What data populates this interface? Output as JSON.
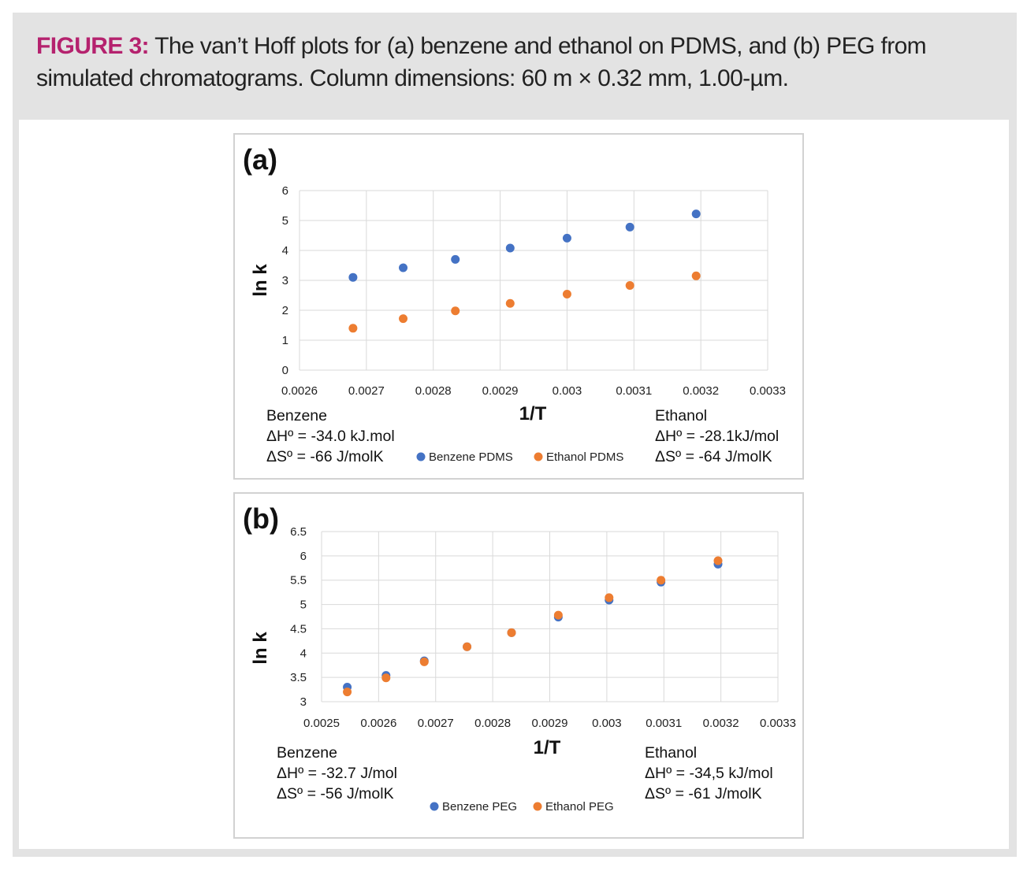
{
  "caption": {
    "label": "FIGURE 3:",
    "text": " The van’t Hoff plots for (a) benzene and ethanol on PDMS, and (b) PEG from simulated chromatograms. Column dimensions: 60 m × 0.32 mm, 1.00-µm."
  },
  "colors": {
    "benzene": "#4472c4",
    "ethanol": "#ed7d31",
    "highlight": "#b5226e"
  },
  "chart_data": [
    {
      "type": "scatter",
      "panel_label": "(a)",
      "xlabel": "1/T",
      "ylabel": "ln k",
      "xlim": [
        0.0026,
        0.0033
      ],
      "ylim": [
        0,
        6
      ],
      "x_ticks": [
        0.0026,
        0.0027,
        0.0028,
        0.0029,
        0.003,
        0.0031,
        0.0032,
        0.0033
      ],
      "x_tick_labels": [
        "0.0026",
        "0.0027",
        "0.0028",
        "0.0029",
        "0.003",
        "0.0031",
        "0.0032",
        "0.0033"
      ],
      "y_ticks": [
        0,
        1,
        2,
        3,
        4,
        5,
        6
      ],
      "y_tick_labels": [
        "0",
        "1",
        "2",
        "3",
        "4",
        "5",
        "6"
      ],
      "grid": true,
      "legend_position": "bottom-center",
      "series": [
        {
          "name": "Benzene PDMS",
          "color": "#4472c4",
          "points": [
            [
              0.00268,
              3.1
            ],
            [
              0.002755,
              3.42
            ],
            [
              0.002833,
              3.7
            ],
            [
              0.002915,
              4.08
            ],
            [
              0.003,
              4.41
            ],
            [
              0.003094,
              4.78
            ],
            [
              0.003193,
              5.22
            ]
          ]
        },
        {
          "name": "Ethanol PDMS",
          "color": "#ed7d31",
          "points": [
            [
              0.00268,
              1.4
            ],
            [
              0.002755,
              1.72
            ],
            [
              0.002833,
              1.98
            ],
            [
              0.002915,
              2.23
            ],
            [
              0.003,
              2.54
            ],
            [
              0.003094,
              2.83
            ],
            [
              0.003193,
              3.15
            ]
          ]
        }
      ],
      "annotations": {
        "left": [
          "Benzene",
          "ΔHº = -34.0 kJ.mol",
          "ΔSº = -66 J/molK"
        ],
        "right": [
          "Ethanol",
          "ΔHº = -28.1kJ/mol",
          "ΔSº = -64 J/molK"
        ]
      }
    },
    {
      "type": "scatter",
      "panel_label": "(b)",
      "xlabel": "1/T",
      "ylabel": "ln k",
      "xlim": [
        0.0025,
        0.0033
      ],
      "ylim": [
        3,
        6.5
      ],
      "x_ticks": [
        0.0025,
        0.0026,
        0.0027,
        0.0028,
        0.0029,
        0.003,
        0.0031,
        0.0032,
        0.0033
      ],
      "x_tick_labels": [
        "0.0025",
        "0.0026",
        "0.0027",
        "0.0028",
        "0.0029",
        "0.003",
        "0.0031",
        "0.0032",
        "0.0033"
      ],
      "y_ticks": [
        3,
        3.5,
        4,
        4.5,
        5,
        5.5,
        6,
        6.5
      ],
      "y_tick_labels": [
        "3",
        "3.5",
        "4",
        "4.5",
        "5",
        "5.5",
        "6",
        "6.5"
      ],
      "grid": true,
      "legend_position": "bottom-center",
      "series": [
        {
          "name": "Benzene PEG",
          "color": "#4472c4",
          "points": [
            [
              0.002545,
              3.3
            ],
            [
              0.002613,
              3.54
            ],
            [
              0.00268,
              3.84
            ],
            [
              0.002755,
              4.13
            ],
            [
              0.002833,
              4.42
            ],
            [
              0.002915,
              4.74
            ],
            [
              0.003004,
              5.09
            ],
            [
              0.003095,
              5.46
            ],
            [
              0.003195,
              5.83
            ]
          ]
        },
        {
          "name": "Ethanol PEG",
          "color": "#ed7d31",
          "points": [
            [
              0.002545,
              3.2
            ],
            [
              0.002613,
              3.49
            ],
            [
              0.00268,
              3.82
            ],
            [
              0.002755,
              4.13
            ],
            [
              0.002833,
              4.42
            ],
            [
              0.002915,
              4.78
            ],
            [
              0.003004,
              5.14
            ],
            [
              0.003095,
              5.5
            ],
            [
              0.003195,
              5.9
            ]
          ]
        }
      ],
      "annotations": {
        "left": [
          "Benzene",
          "ΔHº = -32.7 J/mol",
          "ΔSº = -56 J/molK"
        ],
        "right": [
          "Ethanol",
          "ΔHº = -34,5 kJ/mol",
          "ΔSº = -61 J/molK"
        ]
      }
    }
  ]
}
